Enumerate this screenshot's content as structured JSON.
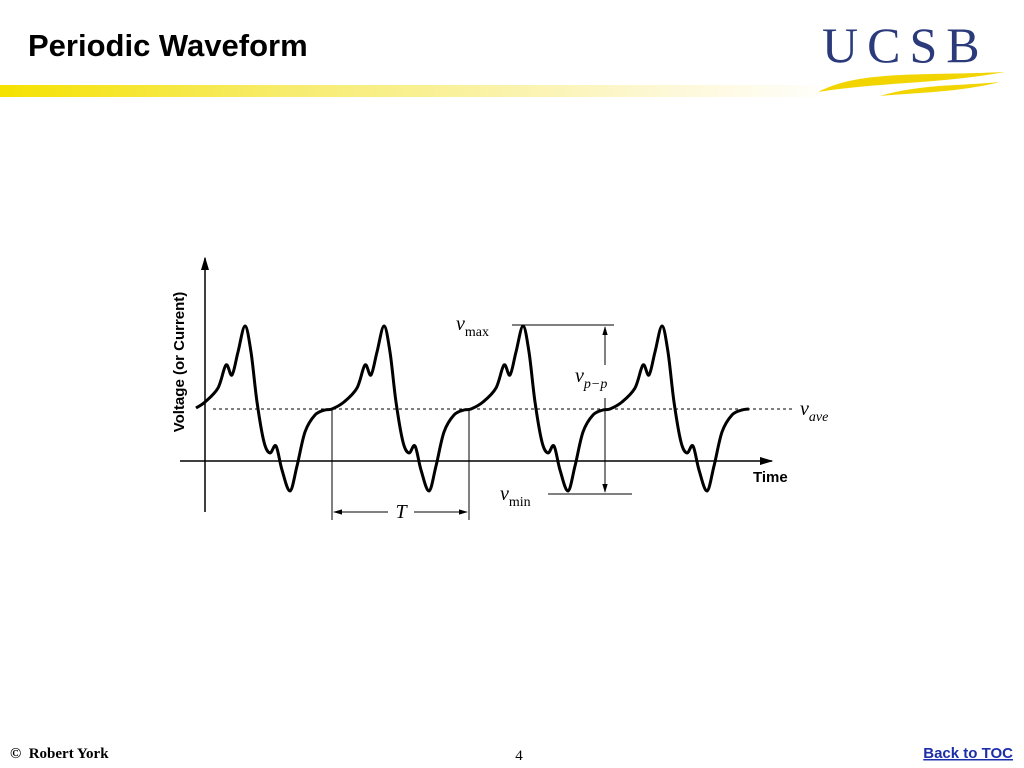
{
  "header": {
    "title": "Periodic Waveform",
    "logo": "UCSB"
  },
  "figure": {
    "y_axis_label": "Voltage (or Current)",
    "x_axis_label": "Time",
    "labels": {
      "max": {
        "symbol": "v",
        "subscript": "max"
      },
      "peak_to_peak": {
        "symbol": "v",
        "subscript": "p−p"
      },
      "ave": {
        "symbol": "v",
        "subscript": "ave"
      },
      "min": {
        "symbol": "v",
        "subscript": "min"
      },
      "period": "T"
    }
  },
  "footer": {
    "copyright": "©  Robert York",
    "page": "4",
    "link": "Back to TOC"
  }
}
